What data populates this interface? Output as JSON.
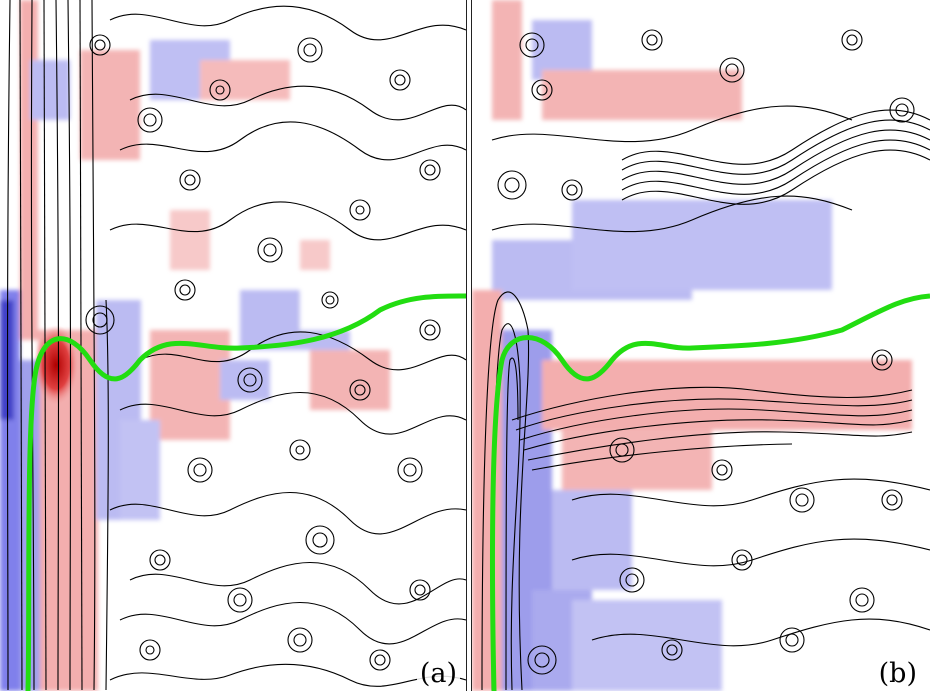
{
  "panels": [
    {
      "id": "a",
      "label": "(a)"
    },
    {
      "id": "b",
      "label": "(b)"
    }
  ],
  "colors": {
    "positive": "#f2a0a0",
    "positive_strong": "#d01010",
    "negative": "#a8a8f0",
    "negative_strong": "#1010c0",
    "interface": "#22dd11",
    "streamline": "#000000",
    "background": "#ffffff"
  }
}
